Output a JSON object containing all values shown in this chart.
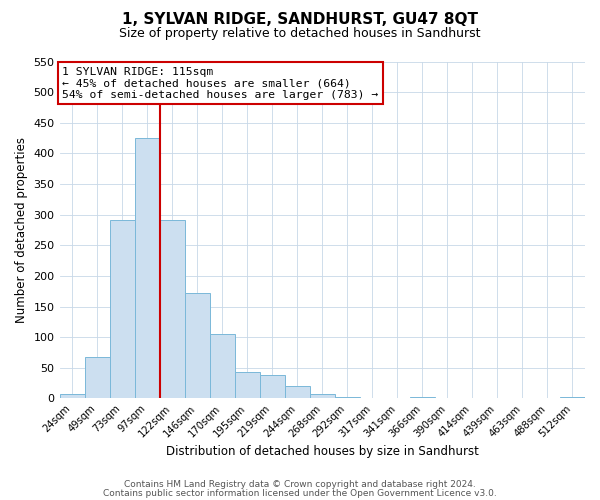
{
  "title": "1, SYLVAN RIDGE, SANDHURST, GU47 8QT",
  "subtitle": "Size of property relative to detached houses in Sandhurst",
  "xlabel": "Distribution of detached houses by size in Sandhurst",
  "ylabel": "Number of detached properties",
  "footnote1": "Contains HM Land Registry data © Crown copyright and database right 2024.",
  "footnote2": "Contains public sector information licensed under the Open Government Licence v3.0.",
  "bar_labels": [
    "24sqm",
    "49sqm",
    "73sqm",
    "97sqm",
    "122sqm",
    "146sqm",
    "170sqm",
    "195sqm",
    "219sqm",
    "244sqm",
    "268sqm",
    "292sqm",
    "317sqm",
    "341sqm",
    "366sqm",
    "390sqm",
    "414sqm",
    "439sqm",
    "463sqm",
    "488sqm",
    "512sqm"
  ],
  "bar_values": [
    8,
    68,
    291,
    425,
    291,
    172,
    106,
    43,
    38,
    20,
    8,
    3,
    0,
    0,
    2,
    0,
    0,
    0,
    0,
    0,
    2
  ],
  "bar_color": "#ccdff0",
  "bar_edge_color": "#7ab8d9",
  "grid_color": "#c8d8e8",
  "vline_color": "#cc0000",
  "annotation_line1": "1 SYLVAN RIDGE: 115sqm",
  "annotation_line2": "← 45% of detached houses are smaller (664)",
  "annotation_line3": "54% of semi-detached houses are larger (783) →",
  "annotation_box_color": "#cc0000",
  "ylim": [
    0,
    550
  ],
  "yticks": [
    0,
    50,
    100,
    150,
    200,
    250,
    300,
    350,
    400,
    450,
    500,
    550
  ],
  "background_color": "#ffffff",
  "plot_bg_color": "#ffffff",
  "title_fontsize": 11,
  "subtitle_fontsize": 9
}
